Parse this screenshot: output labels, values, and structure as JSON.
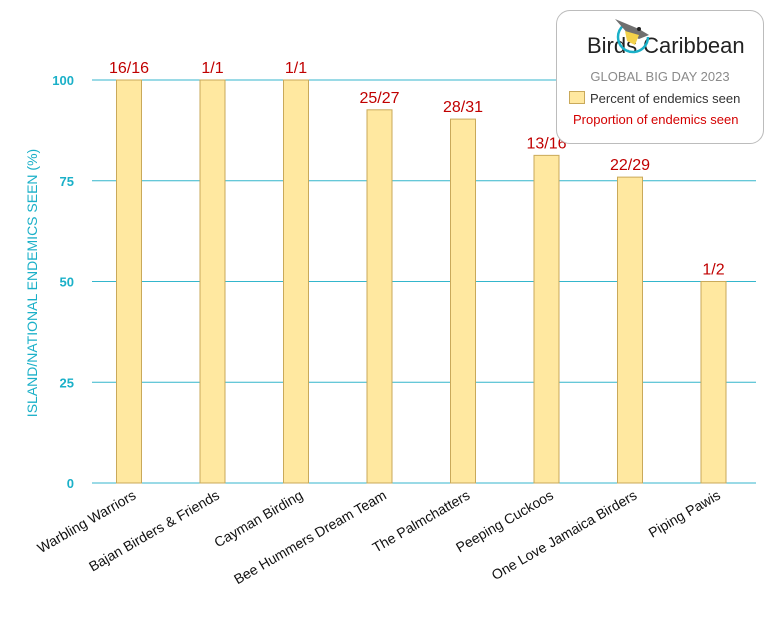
{
  "chart_data": {
    "type": "bar",
    "categories": [
      "Warbling Warriors",
      "Bajan Birders & Friends",
      "Cayman Birding",
      "Bee Hummers Dream Team",
      "The Palmchatters",
      "Peeping Cuckoos",
      "One Love Jamaica Birders",
      "Piping Pawis"
    ],
    "values": [
      100,
      100,
      100,
      92.6,
      90.3,
      81.3,
      75.9,
      50
    ],
    "data_labels": [
      "16/16",
      "1/1",
      "1/1",
      "25/27",
      "28/31",
      "13/16",
      "22/29",
      "1/2"
    ],
    "ylabel": "ISLAND/NATIONAL ENDEMICS SEEN (%)",
    "xlabel": "",
    "ylim": [
      0,
      100
    ],
    "yticks": [
      "0",
      "25",
      "50",
      "75",
      "100"
    ],
    "grid": true,
    "legend_position": "top-right",
    "series": [
      {
        "name": "Percent of endemics seen",
        "color": "#ffe8a0"
      }
    ],
    "label_series_name": "Proportion of endemics seen",
    "label_color": "#c00000",
    "axis_color": "#1ab0c8"
  },
  "legend": {
    "logo_text_left": "Birds",
    "logo_text_right": "Caribbean",
    "subtitle": "GLOBAL BIG DAY 2023",
    "item_bar": "Percent of endemics seen",
    "item_label": "Proportion of endemics seen"
  }
}
